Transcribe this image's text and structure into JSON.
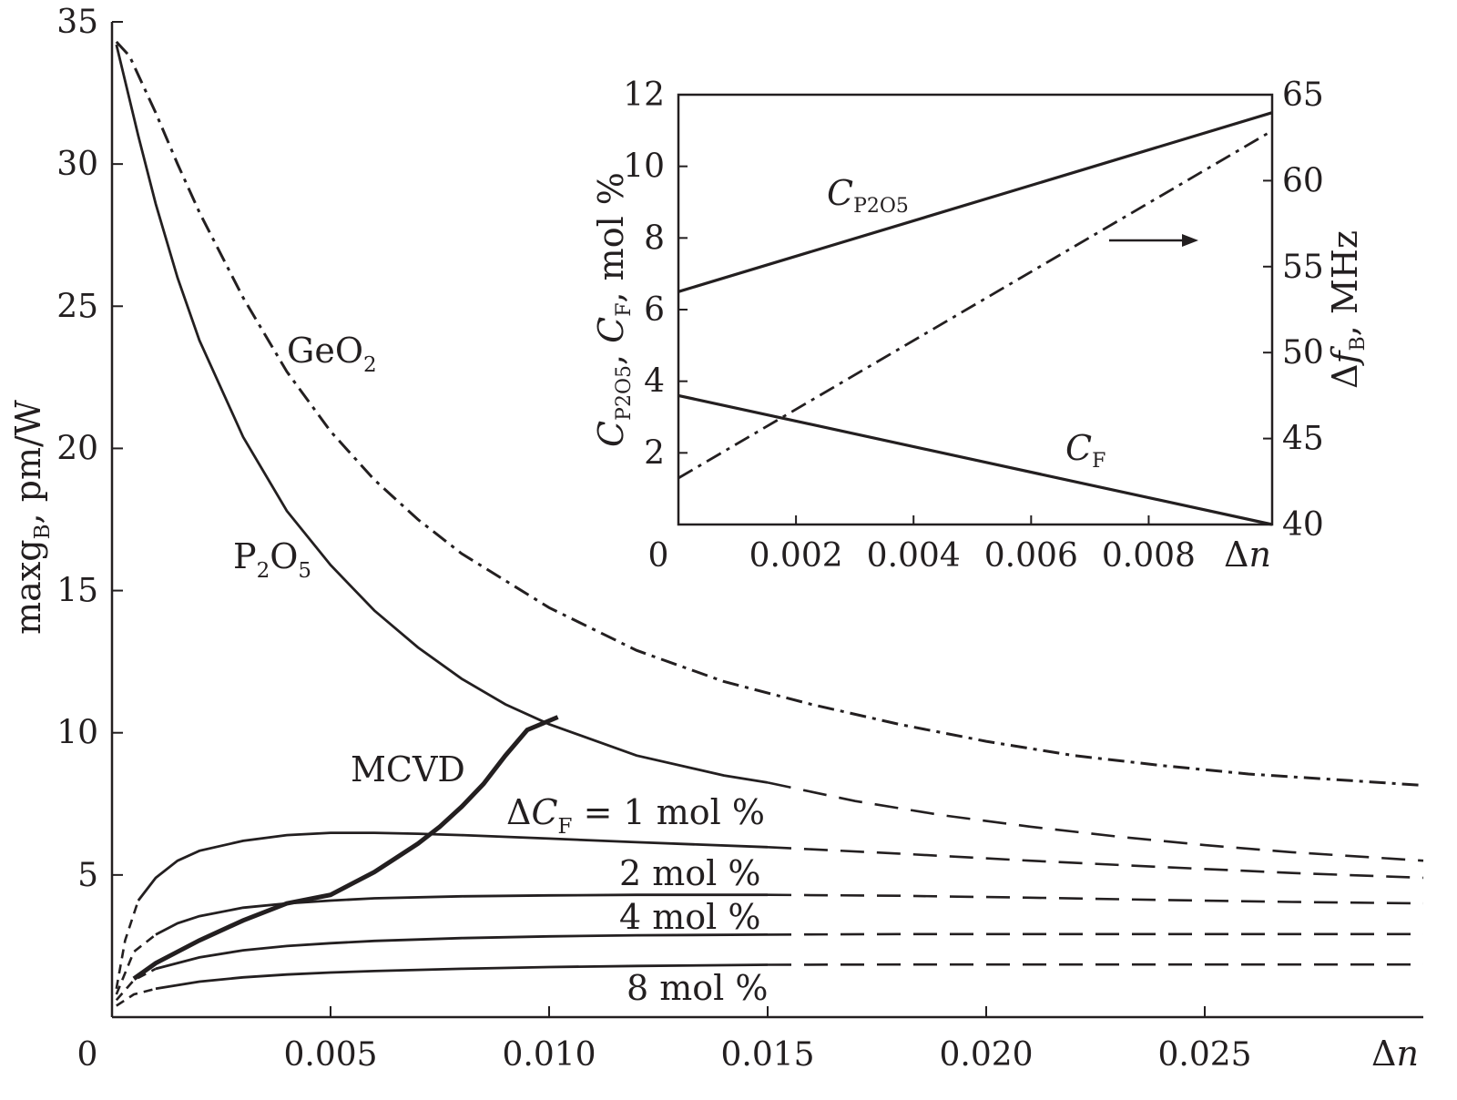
{
  "chart_data": [
    {
      "panel": "main",
      "type": "line",
      "xlabel": "Δn",
      "ylabel": "maxg_B, pm/W",
      "ylabel_parts": {
        "main": "maxg",
        "sub": "B",
        "tail": ", pm/W"
      },
      "xlim": [
        0,
        0.03
      ],
      "ylim": [
        0,
        35
      ],
      "xticks": [
        0,
        0.005,
        0.01,
        0.015,
        0.02,
        0.025
      ],
      "xtick_labels": [
        "0",
        "0.005",
        "0.010",
        "0.015",
        "0.020",
        "0.025"
      ],
      "yticks": [
        5,
        10,
        15,
        20,
        25,
        30,
        35
      ],
      "ytick_labels": [
        "5",
        "10",
        "15",
        "20",
        "25",
        "30",
        "35"
      ],
      "series": [
        {
          "name": "GeO2",
          "label": {
            "main": "GeO",
            "sub": "2"
          },
          "style": "dashdot",
          "x": [
            0.0001,
            0.0004,
            0.001,
            0.0015,
            0.002,
            0.003,
            0.004,
            0.005,
            0.006,
            0.007,
            0.008,
            0.01,
            0.012,
            0.014,
            0.016,
            0.018,
            0.02,
            0.022,
            0.024,
            0.026,
            0.028,
            0.03
          ],
          "y": [
            34.3,
            33.8,
            31.8,
            30.0,
            28.3,
            25.3,
            22.7,
            20.6,
            18.9,
            17.5,
            16.3,
            14.4,
            12.9,
            11.8,
            11.0,
            10.3,
            9.7,
            9.2,
            8.85,
            8.55,
            8.35,
            8.15
          ]
        },
        {
          "name": "P2O5",
          "label": {
            "main": "P",
            "sub": "2",
            "main2": "O",
            "sub2": "5"
          },
          "style": "solid-then-dashed",
          "solid_until": 0.015,
          "x": [
            0.0001,
            0.0006,
            0.001,
            0.0015,
            0.002,
            0.003,
            0.004,
            0.005,
            0.006,
            0.007,
            0.008,
            0.009,
            0.01,
            0.012,
            0.014,
            0.015,
            0.017,
            0.019,
            0.021,
            0.023,
            0.025,
            0.027,
            0.03
          ],
          "y": [
            34.2,
            31.0,
            28.6,
            26.0,
            23.8,
            20.4,
            17.8,
            15.9,
            14.3,
            13.0,
            11.9,
            11.0,
            10.3,
            9.2,
            8.5,
            8.25,
            7.6,
            7.1,
            6.7,
            6.35,
            6.05,
            5.8,
            5.5
          ]
        },
        {
          "name": "ΔC_F = 1 mol %",
          "label": {
            "main": "ΔC",
            "sub": "F",
            "tail": " = 1 mol %"
          },
          "style": "solid-then-dashed",
          "solid_until": 0.015,
          "x": [
            0.0001,
            0.0003,
            0.0006,
            0.001,
            0.0015,
            0.002,
            0.003,
            0.004,
            0.005,
            0.006,
            0.007,
            0.008,
            0.01,
            0.012,
            0.015,
            0.018,
            0.021,
            0.024,
            0.027,
            0.03
          ],
          "y": [
            1.0,
            2.7,
            4.1,
            4.9,
            5.5,
            5.85,
            6.2,
            6.4,
            6.48,
            6.48,
            6.45,
            6.4,
            6.28,
            6.15,
            5.98,
            5.75,
            5.5,
            5.28,
            5.07,
            4.9
          ]
        },
        {
          "name": "2 mol %",
          "label": {
            "main": "2 mol %"
          },
          "style": "solid-then-dashed",
          "solid_until": 0.015,
          "x": [
            0.0001,
            0.0005,
            0.001,
            0.0015,
            0.002,
            0.003,
            0.004,
            0.005,
            0.006,
            0.008,
            0.01,
            0.012,
            0.015,
            0.018,
            0.021,
            0.024,
            0.027,
            0.03
          ],
          "y": [
            0.8,
            2.3,
            2.9,
            3.3,
            3.55,
            3.85,
            4.0,
            4.1,
            4.18,
            4.25,
            4.28,
            4.3,
            4.3,
            4.27,
            4.2,
            4.12,
            4.05,
            4.0
          ]
        },
        {
          "name": "4 mol %",
          "label": {
            "main": "4 mol %"
          },
          "style": "solid-then-dashed",
          "solid_until": 0.015,
          "x": [
            0.0001,
            0.0005,
            0.001,
            0.002,
            0.003,
            0.004,
            0.005,
            0.006,
            0.008,
            0.01,
            0.012,
            0.015,
            0.018,
            0.021,
            0.024,
            0.027,
            0.03
          ],
          "y": [
            0.6,
            1.3,
            1.7,
            2.1,
            2.35,
            2.5,
            2.6,
            2.68,
            2.78,
            2.84,
            2.88,
            2.9,
            2.92,
            2.92,
            2.92,
            2.92,
            2.92
          ]
        },
        {
          "name": "8 mol %",
          "label": {
            "main": "8 mol %"
          },
          "style": "solid-then-dashed",
          "solid_until": 0.015,
          "x": [
            0.0001,
            0.0005,
            0.001,
            0.002,
            0.003,
            0.004,
            0.005,
            0.006,
            0.008,
            0.01,
            0.012,
            0.015,
            0.018,
            0.021,
            0.024,
            0.027,
            0.03
          ],
          "y": [
            0.4,
            0.8,
            1.0,
            1.25,
            1.4,
            1.5,
            1.57,
            1.62,
            1.7,
            1.76,
            1.8,
            1.84,
            1.85,
            1.85,
            1.85,
            1.85,
            1.85
          ]
        },
        {
          "name": "MCVD",
          "label": {
            "main": "MCVD"
          },
          "style": "thick-solid",
          "x": [
            0.0005,
            0.001,
            0.002,
            0.003,
            0.004,
            0.005,
            0.0055,
            0.006,
            0.0065,
            0.007,
            0.0075,
            0.008,
            0.0085,
            0.009,
            0.0095,
            0.0102
          ],
          "y": [
            1.35,
            1.9,
            2.7,
            3.4,
            4.0,
            4.3,
            4.7,
            5.1,
            5.6,
            6.1,
            6.7,
            7.4,
            8.2,
            9.2,
            10.1,
            10.55
          ]
        }
      ]
    },
    {
      "panel": "inset",
      "type": "line",
      "xlabel": "Δn",
      "ylabel_left": "C_P2O5, C_F, mol %",
      "ylabel_right": "Δf_B, MHz",
      "xlim": [
        0,
        0.0101
      ],
      "ylim_left": [
        0,
        12
      ],
      "ylim_right": [
        40,
        65
      ],
      "xtick_labels": [
        "0",
        "0.002",
        "0.004",
        "0.006",
        "0.008"
      ],
      "xticks": [
        0,
        0.002,
        0.004,
        0.006,
        0.008
      ],
      "ytick_left_labels": [
        "2",
        "4",
        "6",
        "8",
        "10",
        "12"
      ],
      "ytick_left": [
        2,
        4,
        6,
        8,
        10,
        12
      ],
      "ytick_right_labels": [
        "40",
        "45",
        "50",
        "55",
        "60",
        "65"
      ],
      "ytick_right": [
        40,
        45,
        50,
        55,
        60,
        65
      ],
      "series": [
        {
          "name": "C_P2O5",
          "axis": "left",
          "style": "solid",
          "x": [
            0,
            0.0101
          ],
          "y": [
            6.5,
            11.5
          ]
        },
        {
          "name": "C_F",
          "axis": "left",
          "style": "solid",
          "x": [
            0,
            0.0101
          ],
          "y": [
            3.6,
            0.0
          ]
        },
        {
          "name": "Δf_B",
          "axis": "right",
          "style": "dashdot",
          "x": [
            0,
            0.0101
          ],
          "y": [
            42.7,
            62.9
          ]
        }
      ]
    }
  ]
}
